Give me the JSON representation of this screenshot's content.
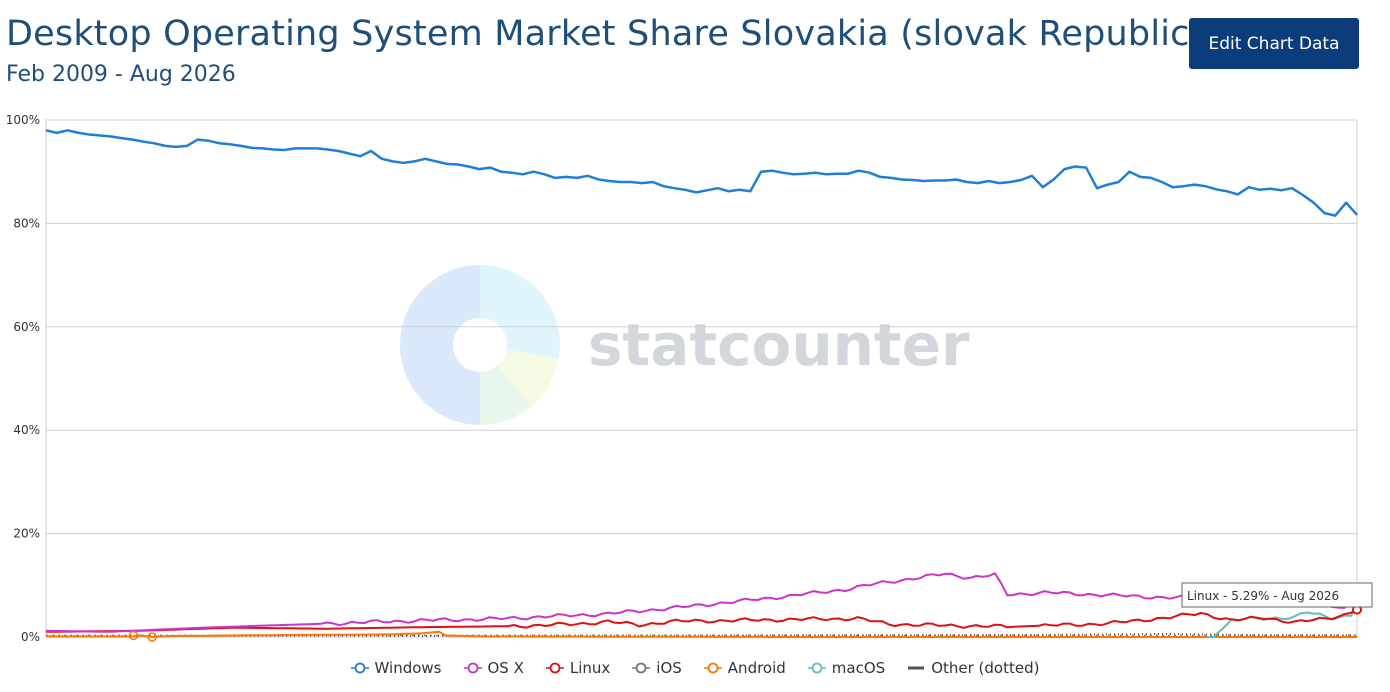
{
  "header": {
    "title": "Desktop Operating System Market Share Slovakia (slovak Republic)",
    "subtitle": "Feb 2009 - Aug 2026",
    "edit_button_label": "Edit Chart Data"
  },
  "watermark": {
    "text": "statcounter"
  },
  "tooltip": {
    "text": "Linux - 5.29% - Aug 2026"
  },
  "chart_data": {
    "type": "line",
    "title": "Desktop Operating System Market Share Slovakia (slovak Republic)",
    "subtitle": "Feb 2009 - Aug 2026",
    "x_range": [
      "Feb 2009",
      "Aug 2026"
    ],
    "months": 211,
    "ylim": [
      0,
      100
    ],
    "y_ticks": [
      0,
      20,
      40,
      60,
      80,
      100
    ],
    "y_tick_labels": [
      "0%",
      "20%",
      "40%",
      "60%",
      "80%",
      "100%"
    ],
    "grid": true,
    "legend_position": "bottom",
    "series": [
      {
        "name": "Windows",
        "color": "#1f7fd6",
        "marker": "circle",
        "values": [
          98,
          97.5,
          98,
          97.5,
          97.2,
          97,
          96.8,
          96.5,
          96.2,
          95.8,
          95.5,
          95,
          94.8,
          95,
          96.2,
          96,
          95.5,
          95.3,
          95,
          94.6,
          94.5,
          94.3,
          94.2,
          94.5,
          94.5,
          94.5,
          94.3,
          94,
          93.5,
          93,
          94,
          92.5,
          92,
          91.7,
          92,
          92.5,
          92,
          91.5,
          91.4,
          91,
          90.5,
          90.8,
          90,
          89.8,
          89.5,
          90,
          89.5,
          88.8,
          89,
          88.8,
          89.2,
          88.5,
          88.2,
          88,
          88,
          87.8,
          88,
          87.2,
          86.8,
          86.5,
          86,
          86.4,
          86.8,
          86.2,
          86.5,
          86.2,
          90,
          90.2,
          89.8,
          89.5,
          89.6,
          89.8,
          89.5,
          89.6,
          89.6,
          90.2,
          89.8,
          89,
          88.8,
          88.5,
          88.4,
          88.2,
          88.3,
          88.3,
          88.5,
          88,
          87.8,
          88.2,
          87.8,
          88,
          88.4,
          89.2,
          87,
          88.5,
          90.5,
          91,
          90.8,
          86.8,
          87.5,
          88,
          90,
          89,
          88.8,
          88,
          87,
          87.2,
          87.5,
          87.2,
          86.6,
          86.2,
          85.6,
          87,
          86.5,
          86.7,
          86.4,
          86.8,
          85.5,
          84,
          82,
          81.5,
          84,
          81.65
        ],
        "anchors": [
          [
            0,
            98.2
          ],
          [
            4,
            97.5
          ],
          [
            9,
            98.2
          ],
          [
            15,
            97.2
          ],
          [
            25,
            96.8
          ],
          [
            35,
            96.3
          ],
          [
            45,
            95.8
          ],
          [
            50,
            95
          ],
          [
            52,
            94.8
          ],
          [
            55,
            96.2
          ],
          [
            60,
            95.7
          ],
          [
            68,
            95
          ],
          [
            74,
            95
          ],
          [
            82,
            94.7
          ],
          [
            88,
            94.5
          ],
          [
            91,
            92.5
          ],
          [
            95,
            94.2
          ],
          [
            100,
            93.3
          ],
          [
            104,
            91.8
          ],
          [
            108,
            93
          ],
          [
            113,
            92
          ],
          [
            116,
            91
          ],
          [
            121,
            90.5
          ],
          [
            126,
            89.8
          ],
          [
            131,
            89.7
          ],
          [
            136,
            89.2
          ],
          [
            141,
            88.1
          ],
          [
            146,
            88
          ],
          [
            151,
            86.8
          ],
          [
            156,
            86.5
          ],
          [
            160,
            86
          ],
          [
            163,
            90.2
          ],
          [
            167,
            89.5
          ],
          [
            172,
            89.5
          ],
          [
            176,
            90.6
          ],
          [
            181,
            88.3
          ],
          [
            186,
            88.5
          ],
          [
            189,
            87.8
          ],
          [
            193,
            89.8
          ],
          [
            196,
            88.5
          ],
          [
            199,
            91.3
          ],
          [
            203,
            87.2
          ],
          [
            206,
            90.2
          ],
          [
            210,
            86.8
          ]
        ]
      },
      {
        "name": "OS X",
        "color": "#cc33cc",
        "marker": "circle",
        "anchors": [
          [
            0,
            1.2
          ],
          [
            10,
            1
          ],
          [
            25,
            1.8
          ],
          [
            45,
            2.6
          ],
          [
            60,
            3.2
          ],
          [
            72,
            3.5
          ],
          [
            90,
            4.5
          ],
          [
            102,
            5.8
          ],
          [
            110,
            6.8
          ],
          [
            118,
            7.8
          ],
          [
            128,
            9.2
          ],
          [
            134,
            10.5
          ],
          [
            140,
            11.5
          ],
          [
            144,
            12.2
          ],
          [
            148,
            11.5
          ],
          [
            152,
            12
          ],
          [
            154,
            8.2
          ],
          [
            160,
            8.6
          ],
          [
            170,
            8.1
          ],
          [
            180,
            7.6
          ],
          [
            190,
            7.8
          ],
          [
            196,
            8.5
          ],
          [
            200,
            7.5
          ],
          [
            205,
            6.5
          ],
          [
            208,
            5.5
          ],
          [
            210,
            9
          ]
        ]
      },
      {
        "name": "Linux",
        "color": "#dd1111",
        "marker": "circle",
        "anchors": [
          [
            0,
            1
          ],
          [
            15,
            1.2
          ],
          [
            30,
            1.8
          ],
          [
            45,
            1.6
          ],
          [
            60,
            1.9
          ],
          [
            75,
            2.1
          ],
          [
            85,
            2.5
          ],
          [
            90,
            3
          ],
          [
            95,
            2.3
          ],
          [
            100,
            3
          ],
          [
            110,
            3.2
          ],
          [
            120,
            3.4
          ],
          [
            130,
            3.6
          ],
          [
            135,
            2.5
          ],
          [
            145,
            2.2
          ],
          [
            155,
            2
          ],
          [
            160,
            2.2
          ],
          [
            170,
            2.6
          ],
          [
            180,
            3.8
          ],
          [
            185,
            4.6
          ],
          [
            190,
            3.2
          ],
          [
            195,
            3.8
          ],
          [
            200,
            2.8
          ],
          [
            205,
            3.6
          ],
          [
            208,
            4.3
          ],
          [
            210,
            5.29
          ]
        ]
      },
      {
        "name": "iOS",
        "color": "#777777",
        "marker": "circle",
        "anchors": [
          [
            0,
            0.3
          ],
          [
            60,
            0.3
          ],
          [
            120,
            0.3
          ],
          [
            180,
            0.3
          ],
          [
            210,
            0.3
          ]
        ]
      },
      {
        "name": "Android",
        "color": "#ff7700",
        "marker": "circle",
        "anchors": [
          [
            0,
            0.1
          ],
          [
            14,
            0.1
          ],
          [
            15,
            0.3
          ],
          [
            17,
            0
          ],
          [
            20,
            0.2
          ],
          [
            40,
            0.4
          ],
          [
            55,
            0.5
          ],
          [
            60,
            0.7
          ],
          [
            63,
            1
          ],
          [
            64,
            0.3
          ],
          [
            70,
            0.1
          ],
          [
            120,
            0
          ],
          [
            180,
            0
          ],
          [
            210,
            0
          ]
        ]
      },
      {
        "name": "macOS",
        "color": "#66bbbb",
        "marker": "circle",
        "anchors": [
          [
            186,
            0
          ],
          [
            187,
            0
          ],
          [
            190,
            3.3
          ],
          [
            195,
            3.6
          ],
          [
            200,
            3.8
          ],
          [
            202,
            4.8
          ],
          [
            206,
            3.7
          ],
          [
            209,
            4.2
          ],
          [
            210,
            5.7
          ]
        ]
      },
      {
        "name": "Other (dotted)",
        "color": "#555555",
        "marker": "line",
        "anchors": [
          [
            0,
            0.2
          ],
          [
            60,
            0.2
          ],
          [
            120,
            0.3
          ],
          [
            160,
            0.4
          ],
          [
            180,
            0.6
          ],
          [
            190,
            0.4
          ],
          [
            210,
            0.3
          ]
        ]
      }
    ]
  }
}
